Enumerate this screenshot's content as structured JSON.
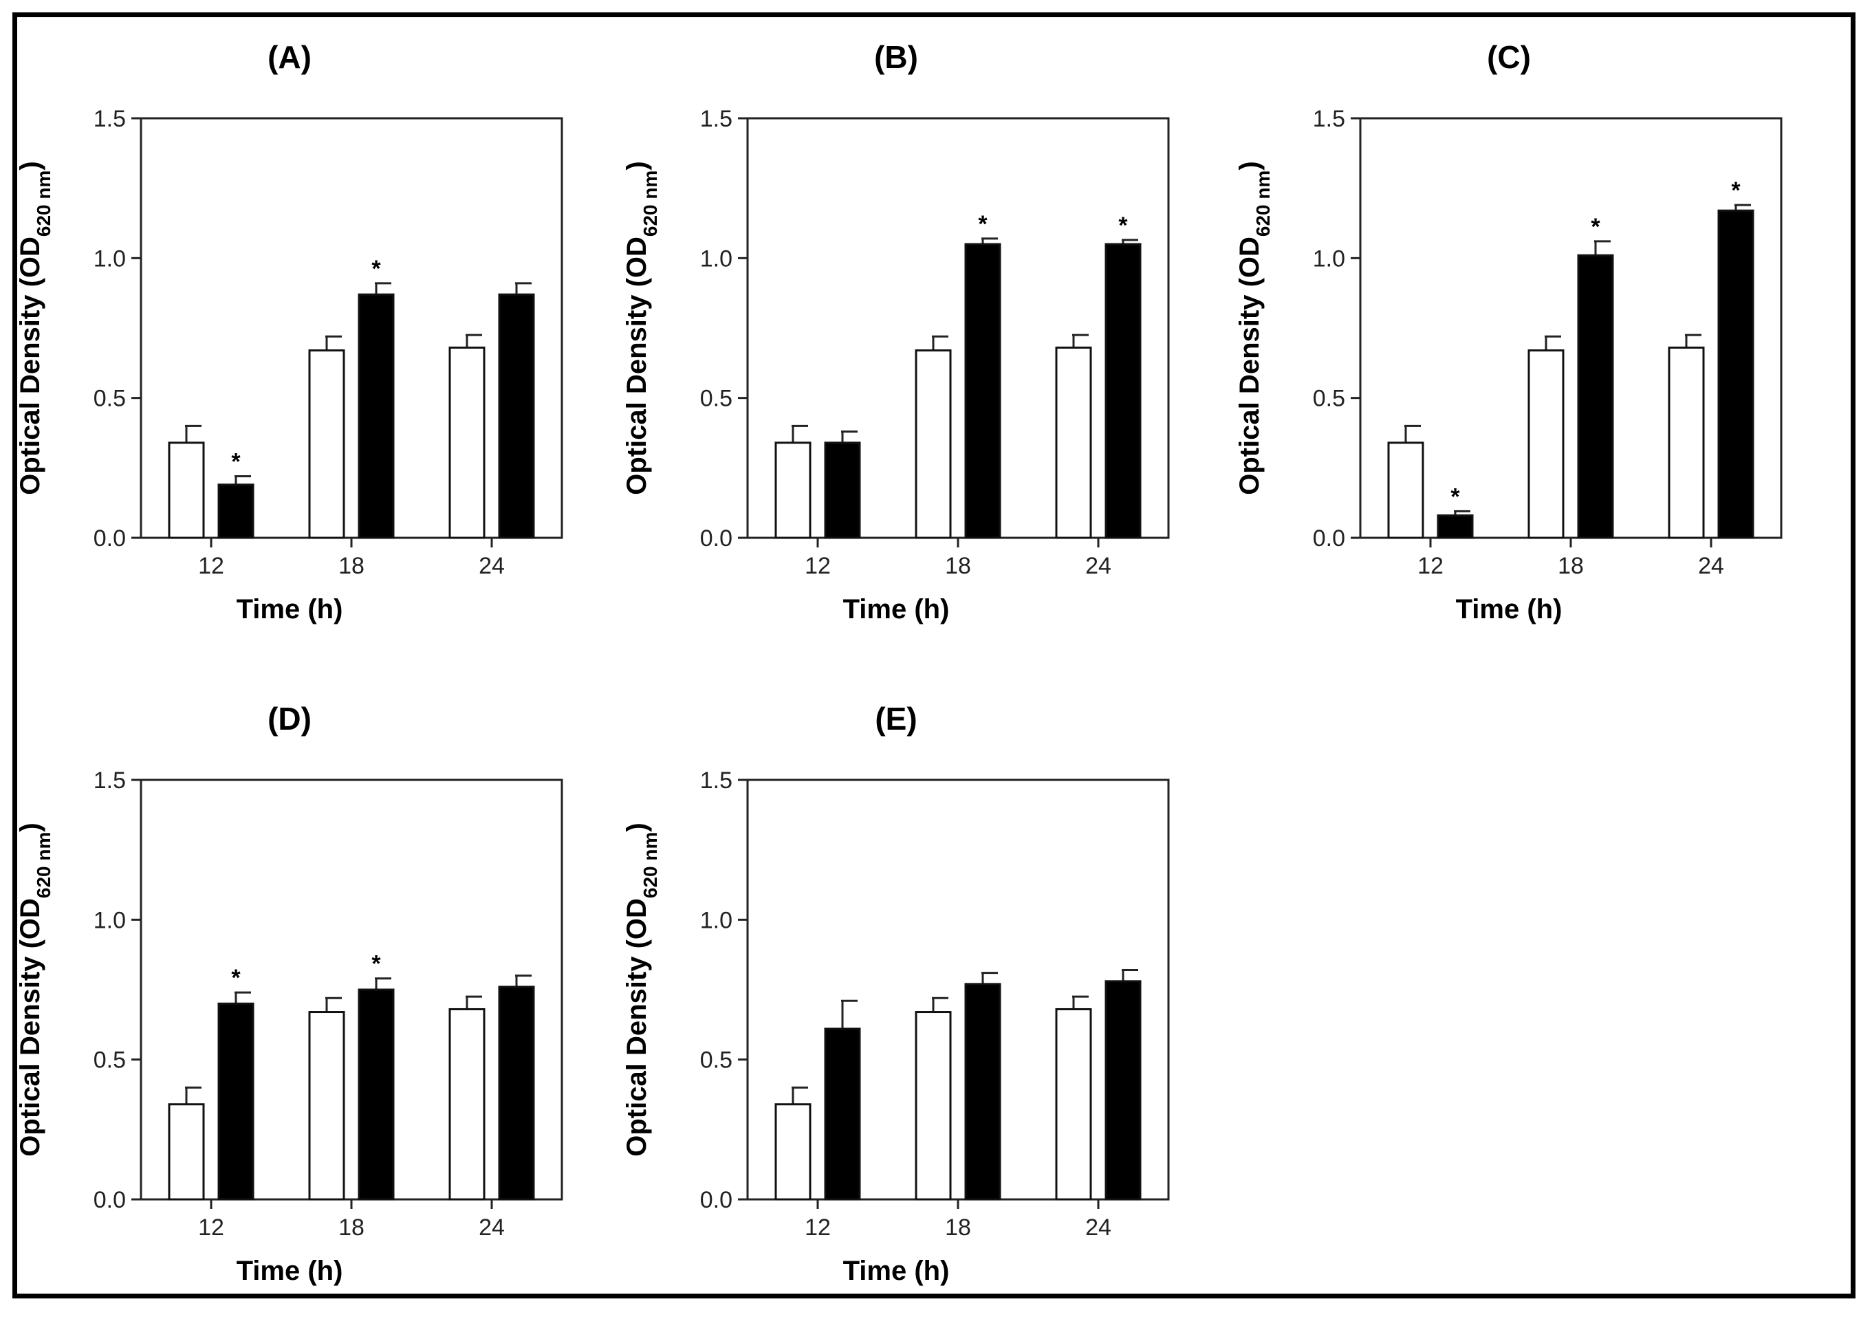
{
  "chart_data": [
    {
      "type": "bar",
      "title": "(A)",
      "xlabel": "Time (h)",
      "ylabel": "Optical Density (OD",
      "ylabel_sub": "620 nm",
      "ylabel_end": ")",
      "ylim": [
        0,
        1.5
      ],
      "yticks": [
        "0.0",
        "0.5",
        "1.0",
        "1.5"
      ],
      "categories": [
        "12",
        "18",
        "24"
      ],
      "series": [
        {
          "name": "open bars",
          "color": "#ffffff",
          "values": [
            0.34,
            0.67,
            0.68
          ],
          "errors": [
            0.06,
            0.05,
            0.045
          ]
        },
        {
          "name": "filled bars",
          "color": "#000000",
          "values": [
            0.19,
            0.87,
            0.87
          ],
          "errors": [
            0.03,
            0.04,
            0.04
          ]
        }
      ],
      "significance": [
        "*",
        "*",
        ""
      ]
    },
    {
      "type": "bar",
      "title": "(B)",
      "xlabel": "Time (h)",
      "ylabel": "Optical Density (OD",
      "ylabel_sub": "620 nm",
      "ylabel_end": ")",
      "ylim": [
        0,
        1.5
      ],
      "yticks": [
        "0.0",
        "0.5",
        "1.0",
        "1.5"
      ],
      "categories": [
        "12",
        "18",
        "24"
      ],
      "series": [
        {
          "name": "open bars",
          "color": "#ffffff",
          "values": [
            0.34,
            0.67,
            0.68
          ],
          "errors": [
            0.06,
            0.05,
            0.045
          ]
        },
        {
          "name": "filled bars",
          "color": "#000000",
          "values": [
            0.34,
            1.05,
            1.05
          ],
          "errors": [
            0.04,
            0.02,
            0.015
          ]
        }
      ],
      "significance": [
        "",
        "*",
        "*"
      ]
    },
    {
      "type": "bar",
      "title": "(C)",
      "xlabel": "Time (h)",
      "ylabel": "Optical Density (OD",
      "ylabel_sub": "620 nm",
      "ylabel_end": ")",
      "ylim": [
        0,
        1.5
      ],
      "yticks": [
        "0.0",
        "0.5",
        "1.0",
        "1.5"
      ],
      "categories": [
        "12",
        "18",
        "24"
      ],
      "series": [
        {
          "name": "open bars",
          "color": "#ffffff",
          "values": [
            0.34,
            0.67,
            0.68
          ],
          "errors": [
            0.06,
            0.05,
            0.045
          ]
        },
        {
          "name": "filled bars",
          "color": "#000000",
          "values": [
            0.08,
            1.01,
            1.17
          ],
          "errors": [
            0.015,
            0.05,
            0.02
          ]
        }
      ],
      "significance": [
        "*",
        "*",
        "*"
      ]
    },
    {
      "type": "bar",
      "title": "(D)",
      "xlabel": "Time (h)",
      "ylabel": "Optical Density (OD",
      "ylabel_sub": "620 nm",
      "ylabel_end": ")",
      "ylim": [
        0,
        1.5
      ],
      "yticks": [
        "0.0",
        "0.5",
        "1.0",
        "1.5"
      ],
      "categories": [
        "12",
        "18",
        "24"
      ],
      "series": [
        {
          "name": "open bars",
          "color": "#ffffff",
          "values": [
            0.34,
            0.67,
            0.68
          ],
          "errors": [
            0.06,
            0.05,
            0.045
          ]
        },
        {
          "name": "filled bars",
          "color": "#000000",
          "values": [
            0.7,
            0.75,
            0.76
          ],
          "errors": [
            0.04,
            0.04,
            0.04
          ]
        }
      ],
      "significance": [
        "*",
        "*",
        ""
      ]
    },
    {
      "type": "bar",
      "title": "(E)",
      "xlabel": "Time (h)",
      "ylabel": "Optical Density (OD",
      "ylabel_sub": "620 nm",
      "ylabel_end": ")",
      "ylim": [
        0,
        1.5
      ],
      "yticks": [
        "0.0",
        "0.5",
        "1.0",
        "1.5"
      ],
      "categories": [
        "12",
        "18",
        "24"
      ],
      "series": [
        {
          "name": "open bars",
          "color": "#ffffff",
          "values": [
            0.34,
            0.67,
            0.68
          ],
          "errors": [
            0.06,
            0.05,
            0.045
          ]
        },
        {
          "name": "filled bars",
          "color": "#000000",
          "values": [
            0.61,
            0.77,
            0.78
          ],
          "errors": [
            0.1,
            0.04,
            0.04
          ]
        }
      ],
      "significance": [
        "",
        "",
        ""
      ]
    }
  ]
}
